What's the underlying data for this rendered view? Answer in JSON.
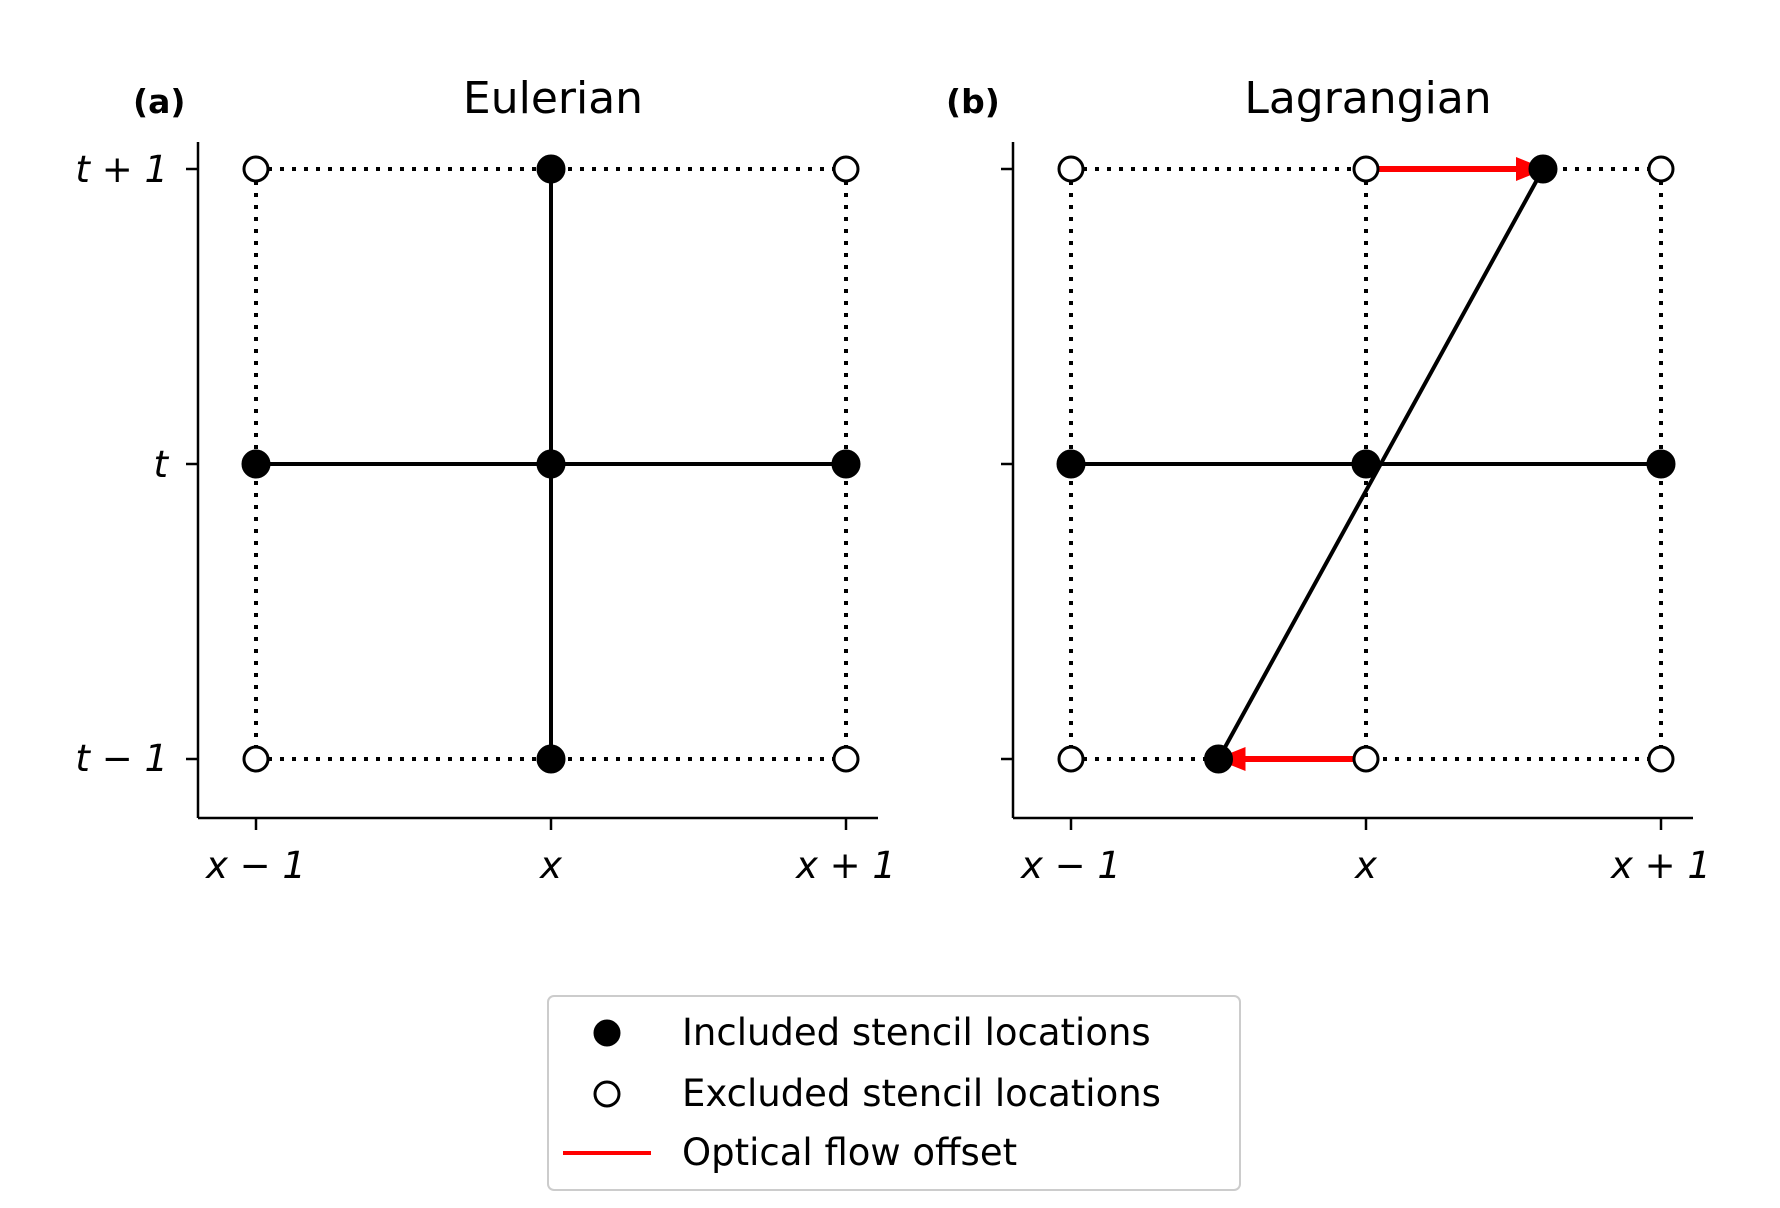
{
  "panels": [
    {
      "label": "(a)",
      "title": "Eulerian",
      "x_ticks": [
        "x − 1",
        "x",
        "x + 1"
      ],
      "y_ticks": [
        "t − 1",
        "t",
        "t + 1"
      ],
      "grid_points": [
        {
          "x": -1,
          "t": 1,
          "included": false
        },
        {
          "x": 0,
          "t": 1,
          "included": true
        },
        {
          "x": 1,
          "t": 1,
          "included": false
        },
        {
          "x": -1,
          "t": 0,
          "included": true
        },
        {
          "x": 0,
          "t": 0,
          "included": true
        },
        {
          "x": 1,
          "t": 0,
          "included": true
        },
        {
          "x": -1,
          "t": -1,
          "included": false
        },
        {
          "x": 0,
          "t": -1,
          "included": true
        },
        {
          "x": 1,
          "t": -1,
          "included": false
        }
      ],
      "stencil_lines": [
        {
          "from": [
            -1,
            0
          ],
          "to": [
            1,
            0
          ]
        },
        {
          "from": [
            0,
            -1
          ],
          "to": [
            0,
            1
          ]
        }
      ],
      "flow_arrows": []
    },
    {
      "label": "(b)",
      "title": "Lagrangian",
      "x_ticks": [
        "x − 1",
        "x",
        "x + 1"
      ],
      "y_ticks": [
        "",
        "",
        ""
      ],
      "grid_points": [
        {
          "x": -1,
          "t": 1,
          "included": false
        },
        {
          "x": 0,
          "t": 1,
          "included": false
        },
        {
          "x": 1,
          "t": 1,
          "included": false
        },
        {
          "x": -1,
          "t": 0,
          "included": true
        },
        {
          "x": 0,
          "t": 0,
          "included": true
        },
        {
          "x": 1,
          "t": 0,
          "included": true
        },
        {
          "x": -1,
          "t": -1,
          "included": false
        },
        {
          "x": 0,
          "t": -1,
          "included": false
        },
        {
          "x": 1,
          "t": -1,
          "included": false
        },
        {
          "x": 0.6,
          "t": 1,
          "included": true
        },
        {
          "x": -0.5,
          "t": -1,
          "included": true
        }
      ],
      "stencil_lines": [
        {
          "from": [
            -1,
            0
          ],
          "to": [
            1,
            0
          ]
        },
        {
          "from": [
            -0.5,
            -1
          ],
          "to": [
            0.6,
            1
          ]
        }
      ],
      "flow_arrows": [
        {
          "from": [
            0,
            1
          ],
          "to": [
            0.6,
            1
          ]
        },
        {
          "from": [
            0,
            -1
          ],
          "to": [
            -0.5,
            -1
          ]
        }
      ]
    }
  ],
  "legend": {
    "items": [
      {
        "label": "Included stencil locations",
        "marker": "filled-circle"
      },
      {
        "label": "Excluded stencil locations",
        "marker": "open-circle"
      },
      {
        "label": "Optical flow offset",
        "marker": "red-line"
      }
    ]
  },
  "colors": {
    "line": "#000000",
    "flow": "#ff0000",
    "background": "#ffffff"
  }
}
